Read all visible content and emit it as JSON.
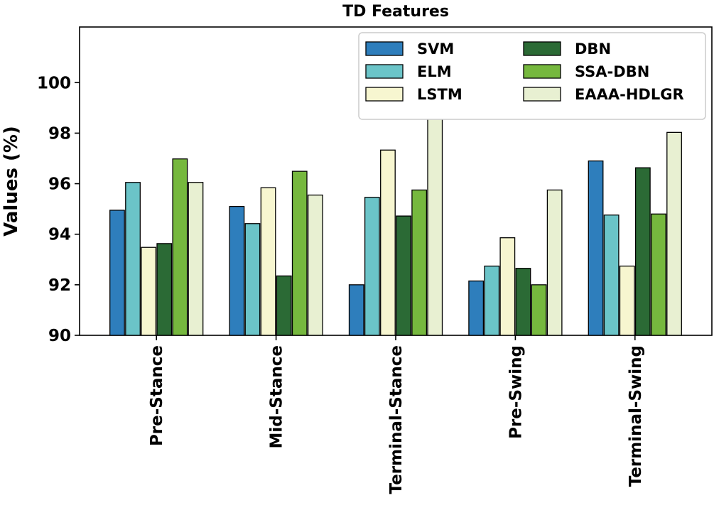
{
  "chart_data": {
    "type": "bar",
    "title": "TD Features",
    "xlabel": "",
    "ylabel": "Values (%)",
    "ylim": [
      90,
      102.2
    ],
    "yticks": [
      90,
      92,
      94,
      96,
      98,
      100
    ],
    "categories": [
      "Pre-Stance",
      "Mid-Stance",
      "Terminal-Stance",
      "Pre-Swing",
      "Terminal-Swing"
    ],
    "series": [
      {
        "name": "SVM",
        "color": "#2e7ebc",
        "values": [
          94.95,
          95.1,
          92.0,
          92.15,
          96.9
        ]
      },
      {
        "name": "ELM",
        "color": "#6bc4c8",
        "values": [
          96.05,
          94.42,
          95.46,
          92.74,
          94.76
        ]
      },
      {
        "name": "LSTM",
        "color": "#f7f6d0",
        "values": [
          93.48,
          95.84,
          97.33,
          93.86,
          92.74
        ]
      },
      {
        "name": "DBN",
        "color": "#2b6a35",
        "values": [
          93.63,
          92.35,
          94.72,
          92.65,
          96.63
        ]
      },
      {
        "name": "SSA-DBN",
        "color": "#76b83e",
        "values": [
          96.98,
          96.49,
          95.75,
          92.0,
          94.8
        ]
      },
      {
        "name": "EAAA-HDLGR",
        "color": "#e8f0d2",
        "values": [
          96.05,
          95.55,
          98.9,
          95.75,
          98.03
        ]
      }
    ],
    "legend": {
      "position": "top-right",
      "columns": 2
    },
    "grid": false
  }
}
